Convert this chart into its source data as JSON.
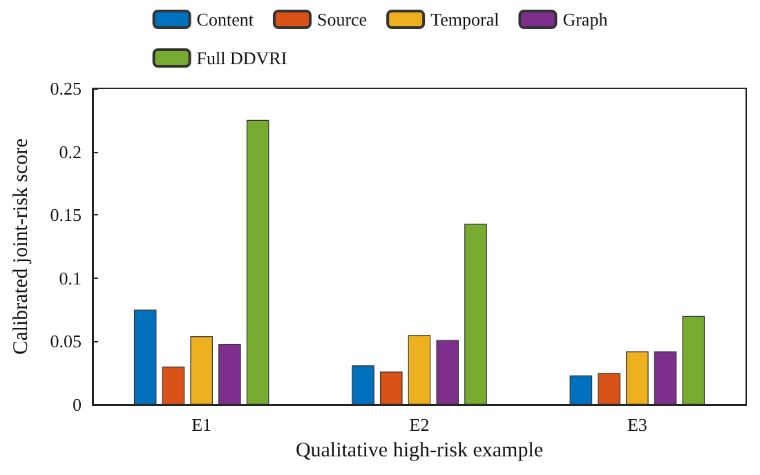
{
  "chart_data": {
    "type": "bar",
    "xlabel": "Qualitative high-risk example",
    "ylabel": "Calibrated joint-risk score",
    "categories": [
      "E1",
      "E2",
      "E3"
    ],
    "series": [
      {
        "name": "Content",
        "color": "#0072bd",
        "values": [
          0.075,
          0.031,
          0.023
        ]
      },
      {
        "name": "Source",
        "color": "#d95319",
        "values": [
          0.03,
          0.026,
          0.025
        ]
      },
      {
        "name": "Temporal",
        "color": "#edb120",
        "values": [
          0.054,
          0.055,
          0.042
        ]
      },
      {
        "name": "Graph",
        "color": "#7e2f8e",
        "values": [
          0.048,
          0.051,
          0.042
        ]
      },
      {
        "name": "Full DDVRI",
        "color": "#77ac30",
        "values": [
          0.225,
          0.143,
          0.07
        ]
      }
    ],
    "ylim": [
      0,
      0.25
    ],
    "yticks": [
      0,
      0.05,
      0.1,
      0.15,
      0.2,
      0.25
    ],
    "grid": false,
    "legend": "top"
  }
}
